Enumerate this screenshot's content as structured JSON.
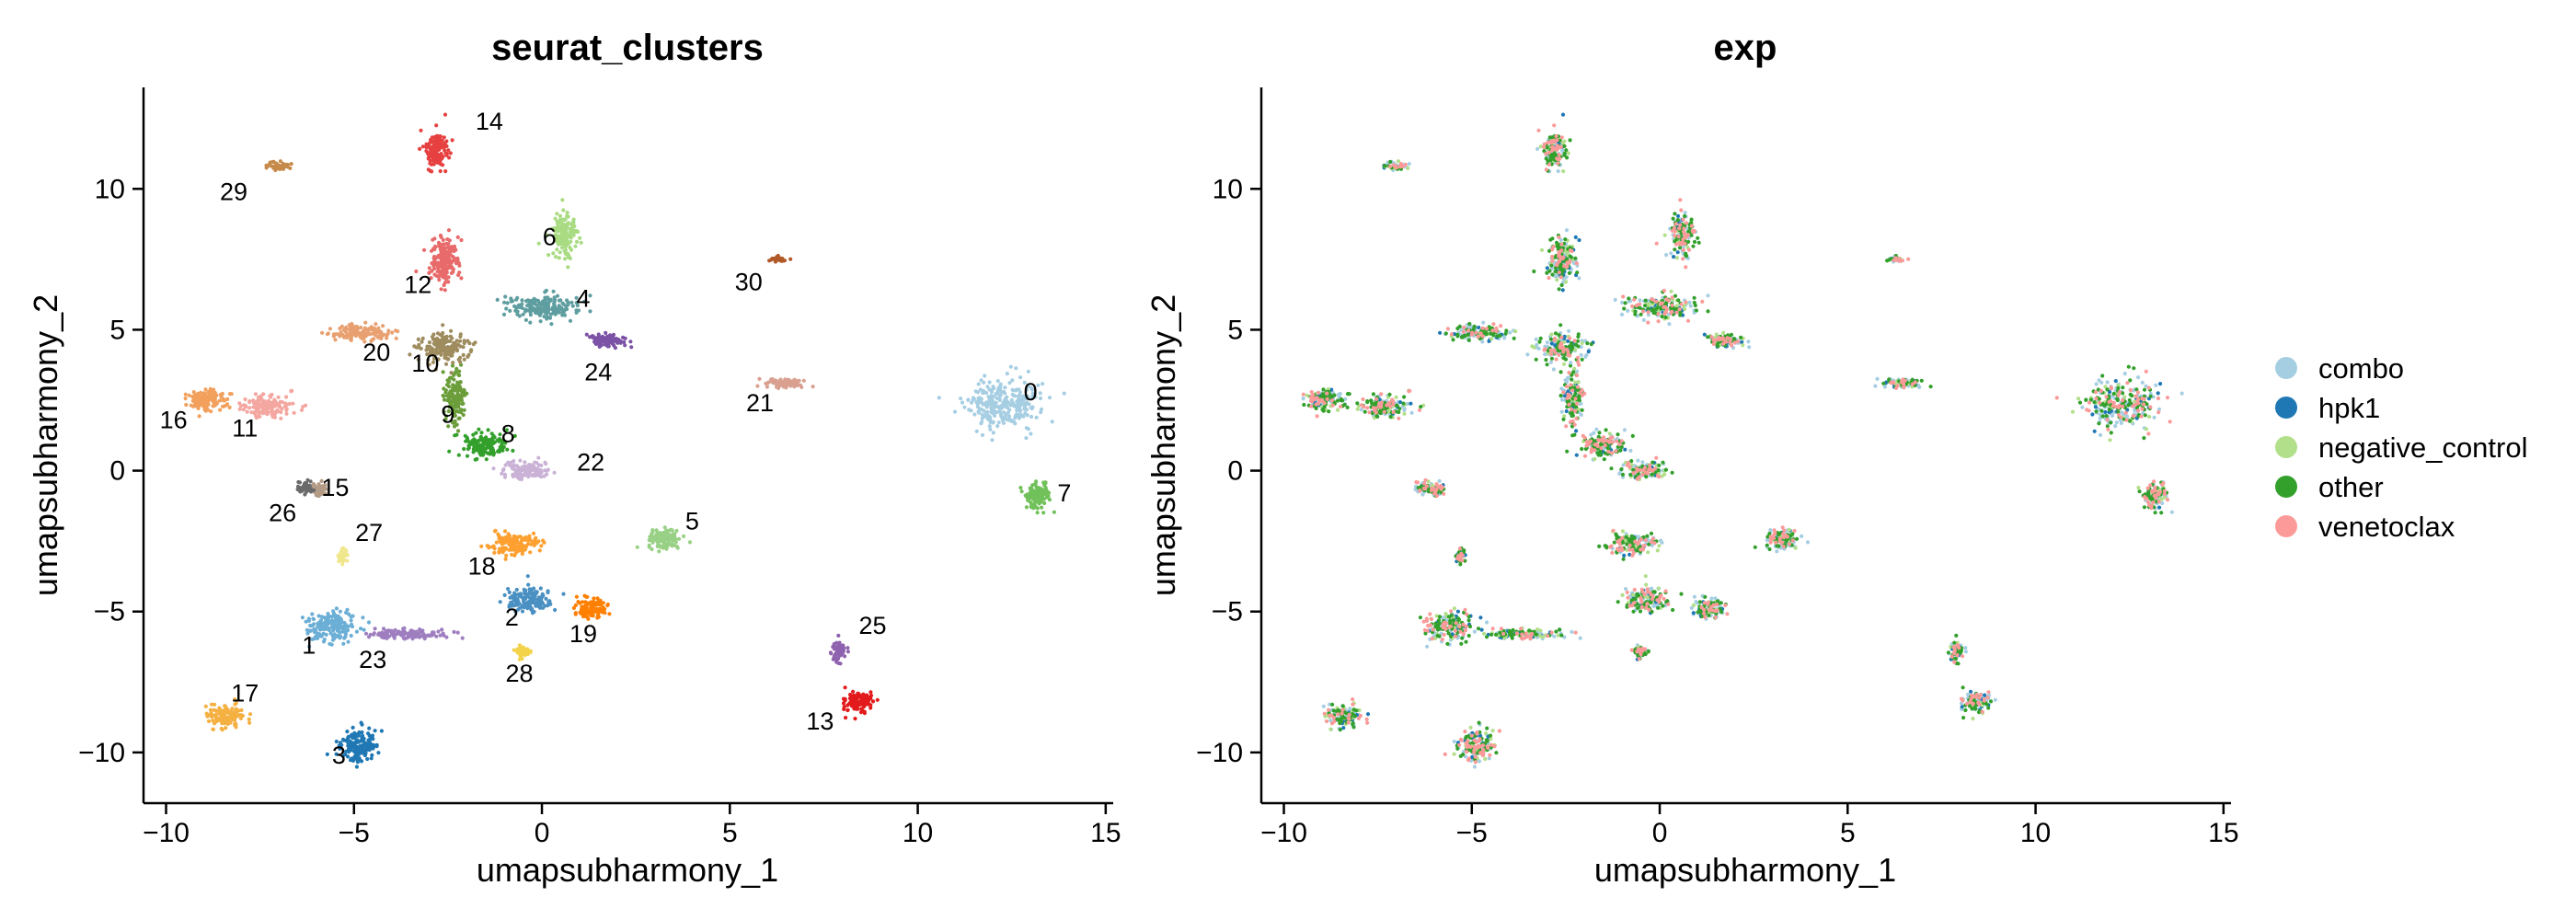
{
  "chart_data": [
    {
      "type": "scatter",
      "title": "seurat_clusters",
      "xlabel": "umapsubharmony_1",
      "ylabel": "umapsubharmony_2",
      "xlim": [
        -10.6,
        15.2
      ],
      "ylim": [
        -11.8,
        13.6
      ],
      "xticks": [
        -10,
        -5,
        0,
        5,
        10,
        15
      ],
      "yticks": [
        -10,
        -5,
        0,
        5,
        10
      ],
      "xtick_labels": [
        "−10",
        "−5",
        "0",
        "5",
        "10",
        "15"
      ],
      "ytick_labels": [
        "−10",
        "−5",
        "0",
        "5",
        "10"
      ],
      "legend": "none",
      "clusters": [
        {
          "label": "0",
          "center": [
            12.3,
            2.4
          ],
          "spread": [
            0.9,
            0.8
          ],
          "color": "#A6CEE3",
          "label_pos": [
            13.0,
            2.8
          ]
        },
        {
          "label": "1",
          "center": [
            -5.6,
            -5.5
          ],
          "spread": [
            0.6,
            0.5
          ],
          "color": "#6BAED6",
          "label_pos": [
            -6.2,
            -6.2
          ]
        },
        {
          "label": "2",
          "center": [
            -0.3,
            -4.6
          ],
          "spread": [
            0.55,
            0.4
          ],
          "color": "#4A90C2",
          "label_pos": [
            -0.8,
            -5.2
          ]
        },
        {
          "label": "3",
          "center": [
            -4.9,
            -9.8
          ],
          "spread": [
            0.45,
            0.55
          ],
          "color": "#1F78B4",
          "label_pos": [
            -5.4,
            -10.1
          ]
        },
        {
          "label": "4",
          "center": [
            0.0,
            5.8
          ],
          "spread": [
            0.8,
            0.4
          ],
          "color": "#5F9EA0",
          "label_pos": [
            1.1,
            6.1
          ]
        },
        {
          "label": "5",
          "center": [
            3.3,
            -2.4
          ],
          "spread": [
            0.4,
            0.35
          ],
          "color": "#98D085",
          "label_pos": [
            4.0,
            -1.8
          ]
        },
        {
          "label": "6",
          "center": [
            0.6,
            8.4
          ],
          "spread": [
            0.3,
            0.7
          ],
          "color": "#A8DB82",
          "label_pos": [
            0.2,
            8.3
          ]
        },
        {
          "label": "7",
          "center": [
            13.2,
            -0.9
          ],
          "spread": [
            0.3,
            0.45
          ],
          "color": "#71C15A",
          "label_pos": [
            13.9,
            -0.8
          ]
        },
        {
          "label": "8",
          "center": [
            -1.5,
            0.9
          ],
          "spread": [
            0.55,
            0.4
          ],
          "color": "#33A02C",
          "label_pos": [
            -0.9,
            1.3
          ]
        },
        {
          "label": "9",
          "center": [
            -2.3,
            2.6
          ],
          "spread": [
            0.25,
            0.8
          ],
          "color": "#6B9E3A",
          "label_pos": [
            -2.5,
            2.0
          ]
        },
        {
          "label": "10",
          "center": [
            -2.6,
            4.4
          ],
          "spread": [
            0.55,
            0.5
          ],
          "color": "#9E8C5E",
          "label_pos": [
            -3.1,
            3.8
          ]
        },
        {
          "label": "11",
          "center": [
            -7.3,
            2.3
          ],
          "spread": [
            0.6,
            0.35
          ],
          "color": "#F4A6A0",
          "label_pos": [
            -7.9,
            1.5
          ]
        },
        {
          "label": "12",
          "center": [
            -2.6,
            7.5
          ],
          "spread": [
            0.35,
            0.8
          ],
          "color": "#E86A6A",
          "label_pos": [
            -3.3,
            6.6
          ]
        },
        {
          "label": "13",
          "center": [
            8.4,
            -8.2
          ],
          "spread": [
            0.35,
            0.35
          ],
          "color": "#E31A1C",
          "label_pos": [
            7.4,
            -8.9
          ]
        },
        {
          "label": "14",
          "center": [
            -2.8,
            11.4
          ],
          "spread": [
            0.3,
            0.6
          ],
          "color": "#E64040",
          "label_pos": [
            -1.4,
            12.4
          ]
        },
        {
          "label": "15",
          "center": [
            -6.0,
            -0.7
          ],
          "spread": [
            0.2,
            0.2
          ],
          "color": "#B39B85",
          "label_pos": [
            -5.5,
            -0.6
          ]
        },
        {
          "label": "16",
          "center": [
            -8.9,
            2.5
          ],
          "spread": [
            0.5,
            0.3
          ],
          "color": "#F2A05C",
          "label_pos": [
            -9.8,
            1.8
          ]
        },
        {
          "label": "17",
          "center": [
            -8.4,
            -8.7
          ],
          "spread": [
            0.5,
            0.3
          ],
          "color": "#F5B042",
          "label_pos": [
            -7.9,
            -7.9
          ]
        },
        {
          "label": "18",
          "center": [
            -0.8,
            -2.6
          ],
          "spread": [
            0.6,
            0.35
          ],
          "color": "#FDA030",
          "label_pos": [
            -1.6,
            -3.4
          ]
        },
        {
          "label": "19",
          "center": [
            1.3,
            -4.9
          ],
          "spread": [
            0.4,
            0.3
          ],
          "color": "#FF7F00",
          "label_pos": [
            1.1,
            -5.8
          ]
        },
        {
          "label": "20",
          "center": [
            -4.8,
            4.9
          ],
          "spread": [
            0.7,
            0.25
          ],
          "color": "#E8A070",
          "label_pos": [
            -4.4,
            4.2
          ]
        },
        {
          "label": "21",
          "center": [
            6.5,
            3.1
          ],
          "spread": [
            0.5,
            0.15
          ],
          "color": "#D9A090",
          "label_pos": [
            5.8,
            2.4
          ]
        },
        {
          "label": "22",
          "center": [
            -0.4,
            0.0
          ],
          "spread": [
            0.5,
            0.3
          ],
          "color": "#CAB2D6",
          "label_pos": [
            1.3,
            0.3
          ]
        },
        {
          "label": "23",
          "center": [
            -3.6,
            -5.8
          ],
          "spread": [
            1.0,
            0.15
          ],
          "color": "#9F7EC0",
          "label_pos": [
            -4.5,
            -6.7
          ]
        },
        {
          "label": "24",
          "center": [
            1.7,
            4.6
          ],
          "spread": [
            0.5,
            0.2
          ],
          "color": "#7B52A6",
          "label_pos": [
            1.5,
            3.5
          ]
        },
        {
          "label": "25",
          "center": [
            7.9,
            -6.4
          ],
          "spread": [
            0.15,
            0.3
          ],
          "color": "#8E62AE",
          "label_pos": [
            8.8,
            -5.5
          ]
        },
        {
          "label": "26",
          "center": [
            -6.3,
            -0.6
          ],
          "spread": [
            0.2,
            0.15
          ],
          "color": "#6A6A6A",
          "label_pos": [
            -6.9,
            -1.5
          ]
        },
        {
          "label": "27",
          "center": [
            -5.3,
            -3.0
          ],
          "spread": [
            0.1,
            0.2
          ],
          "color": "#F0E68C",
          "label_pos": [
            -4.6,
            -2.2
          ]
        },
        {
          "label": "28",
          "center": [
            -0.5,
            -6.4
          ],
          "spread": [
            0.15,
            0.2
          ],
          "color": "#F3D34A",
          "label_pos": [
            -0.6,
            -7.2
          ]
        },
        {
          "label": "29",
          "center": [
            -7.0,
            10.8
          ],
          "spread": [
            0.3,
            0.1
          ],
          "color": "#C68A4B",
          "label_pos": [
            -8.2,
            9.9
          ]
        },
        {
          "label": "30",
          "center": [
            6.3,
            7.5
          ],
          "spread": [
            0.2,
            0.08
          ],
          "color": "#B15928",
          "label_pos": [
            5.5,
            6.7
          ]
        }
      ]
    },
    {
      "type": "scatter",
      "title": "exp",
      "xlabel": "umapsubharmony_1",
      "ylabel": "umapsubharmony_2",
      "xlim": [
        -10.6,
        15.2
      ],
      "ylim": [
        -11.8,
        13.6
      ],
      "xticks": [
        -10,
        -5,
        0,
        5,
        10,
        15
      ],
      "yticks": [
        -10,
        -5,
        0,
        5,
        10
      ],
      "xtick_labels": [
        "−10",
        "−5",
        "0",
        "5",
        "10",
        "15"
      ],
      "ytick_labels": [
        "−10",
        "−5",
        "0",
        "5",
        "10"
      ],
      "legend": "right",
      "series": [
        {
          "name": "combo",
          "color": "#A6CEE3"
        },
        {
          "name": "hpk1",
          "color": "#1F78B4"
        },
        {
          "name": "negative_control",
          "color": "#B2DF8A"
        },
        {
          "name": "other",
          "color": "#33A02C"
        },
        {
          "name": "venetoclax",
          "color": "#FB9A99"
        }
      ]
    }
  ]
}
